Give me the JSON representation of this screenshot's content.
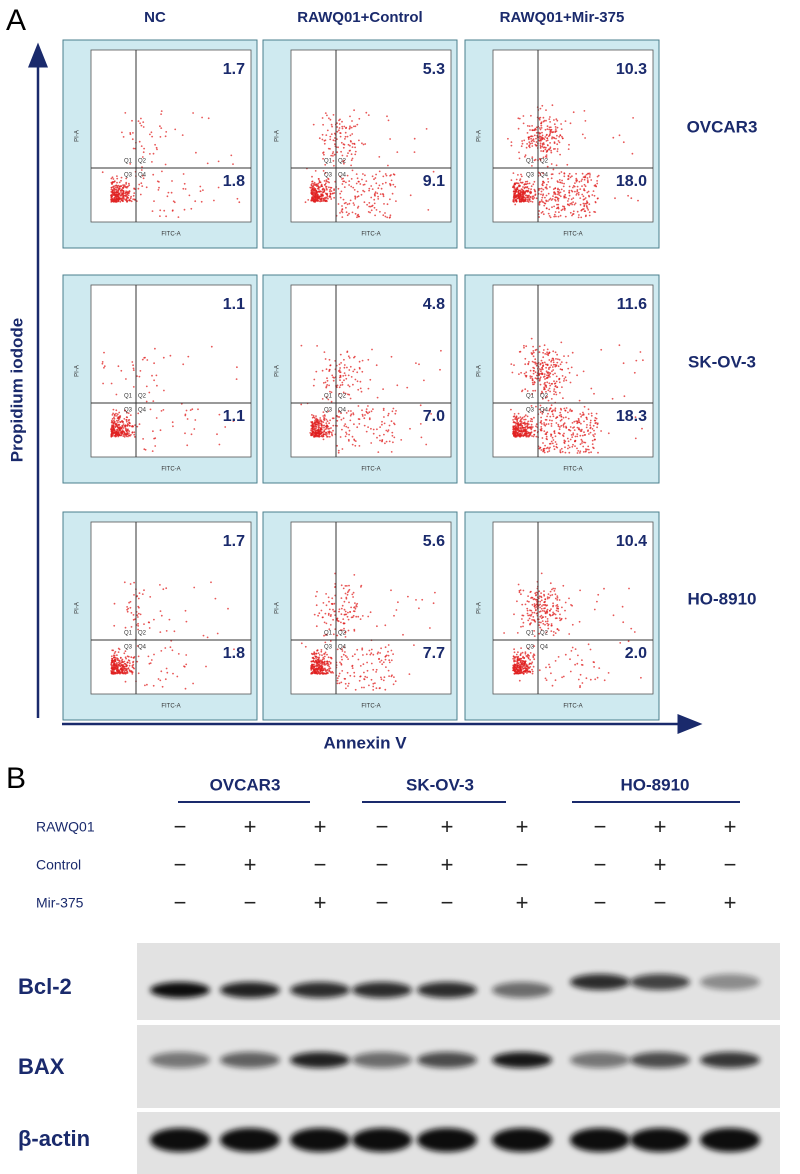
{
  "panel_a": {
    "label": "A",
    "columns": [
      "NC",
      "RAWQ01+Control",
      "RAWQ01+Mir-375"
    ],
    "rows": [
      {
        "name": "OVCAR3",
        "plots": [
          {
            "upper": "1.7",
            "lower": "1.8"
          },
          {
            "upper": "5.3",
            "lower": "9.1"
          },
          {
            "upper": "10.3",
            "lower": "18.0"
          }
        ]
      },
      {
        "name": "SK-OV-3",
        "plots": [
          {
            "upper": "1.1",
            "lower": "1.1"
          },
          {
            "upper": "4.8",
            "lower": "7.0"
          },
          {
            "upper": "11.6",
            "lower": "18.3"
          }
        ]
      },
      {
        "name": "HO-8910",
        "plots": [
          {
            "upper": "1.7",
            "lower": "1.8"
          },
          {
            "upper": "5.6",
            "lower": "7.7"
          },
          {
            "upper": "10.4",
            "lower": "2.0"
          }
        ]
      }
    ],
    "y_axis_label": "Propidium iodode",
    "x_axis_label": "Annexin V",
    "plot_x_label": "FITC-A",
    "plot_y_label": "PI-A",
    "quadrants": [
      "Q1",
      "Q2",
      "Q3",
      "Q4"
    ]
  },
  "panel_b": {
    "label": "B",
    "groups": [
      "OVCAR3",
      "SK-OV-3",
      "HO-8910"
    ],
    "conditions": [
      {
        "name": "RAWQ01",
        "signs": [
          "−",
          "+",
          "+",
          "−",
          "+",
          "+",
          "−",
          "+",
          "+"
        ]
      },
      {
        "name": "Control",
        "signs": [
          "−",
          "+",
          "−",
          "−",
          "+",
          "−",
          "−",
          "+",
          "−"
        ]
      },
      {
        "name": "Mir-375",
        "signs": [
          "−",
          "−",
          "+",
          "−",
          "−",
          "+",
          "−",
          "−",
          "+"
        ]
      }
    ],
    "blots": [
      "Bcl-2",
      "BAX",
      "β-actin"
    ]
  }
}
